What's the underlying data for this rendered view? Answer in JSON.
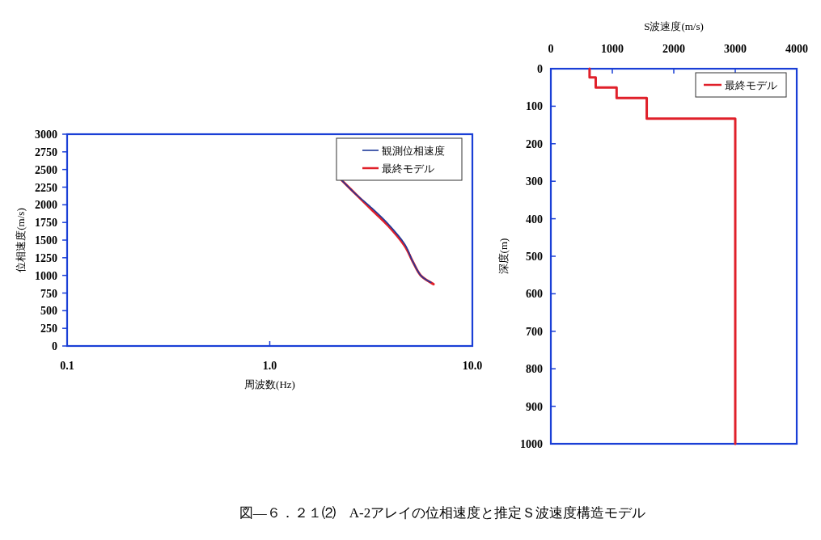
{
  "chart_data": [
    {
      "type": "line",
      "xlabel": "周波数(Hz)",
      "ylabel": "位相速度(m/s)",
      "log": "x",
      "xlim": [
        0.1,
        10
      ],
      "xticks": [
        0.1,
        {
          "value": 1,
          "label": "1.0"
        },
        {
          "value": 10,
          "label": "10.0"
        }
      ],
      "ylim": [
        0,
        3000
      ],
      "yticks": [
        0,
        250,
        500,
        750,
        1000,
        1250,
        1500,
        1750,
        2000,
        2250,
        2500,
        2750,
        3000
      ],
      "legend": "top right",
      "series": [
        {
          "name": "観測位相速度",
          "color": "#1f3a9a",
          "x": [
            2.26,
            2.66,
            3.2,
            3.85,
            4.62,
            5.07,
            5.56,
            6.25
          ],
          "values": [
            2350,
            2150,
            1950,
            1725,
            1450,
            1200,
            1000,
            900
          ]
        },
        {
          "name": "最終モデル",
          "color": "#e0202a",
          "x": [
            2.26,
            2.66,
            3.2,
            3.85,
            4.62,
            5.07,
            5.56,
            6.43
          ],
          "values": [
            2350,
            2150,
            1925,
            1700,
            1425,
            1200,
            1000,
            875
          ]
        }
      ],
      "annotations": [
        "図―６．２１⑵　A-2アレイの位相速度と推定Ｓ波速度構造モデル"
      ]
    },
    {
      "type": "line",
      "xlabel": "S波速度(m/s)",
      "ylabel": "深度(m)",
      "xlim": [
        0,
        4000
      ],
      "xticks": [
        0,
        1000,
        2000,
        3000,
        4000
      ],
      "ylim": [
        1000,
        0
      ],
      "yticks": [
        0,
        100,
        200,
        300,
        400,
        500,
        600,
        700,
        800,
        900,
        1000
      ],
      "legend": "top right",
      "series": [
        {
          "name": "最終モデル",
          "color": "#e0202a",
          "x": [
            630,
            630,
            730,
            730,
            1070,
            1070,
            1560,
            1560,
            3000,
            3000
          ],
          "values": [
            0,
            23,
            23,
            50,
            50,
            78,
            78,
            133,
            133,
            1000
          ]
        }
      ]
    }
  ]
}
